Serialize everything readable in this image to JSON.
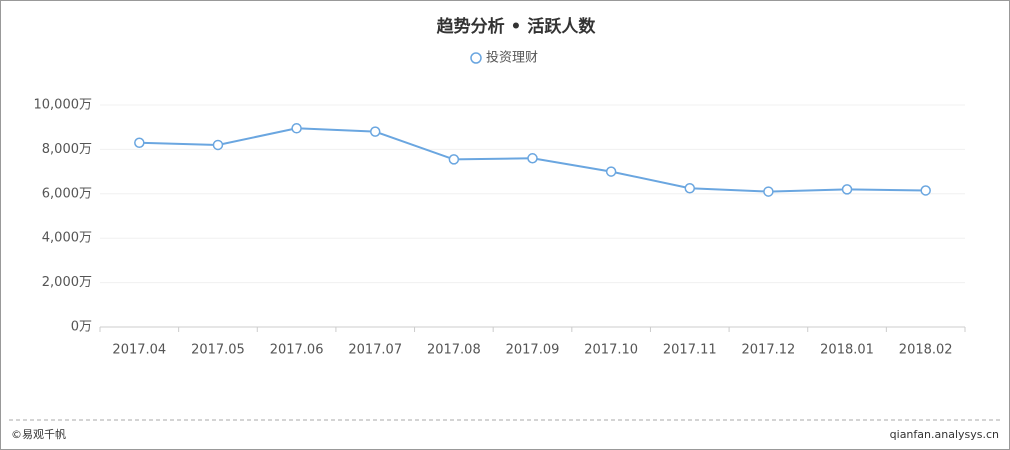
{
  "chart_data": {
    "type": "line",
    "title": "趋势分析 • 活跃人数",
    "categories": [
      "2017.04",
      "2017.05",
      "2017.06",
      "2017.07",
      "2017.08",
      "2017.09",
      "2017.10",
      "2017.11",
      "2017.12",
      "2018.01",
      "2018.02"
    ],
    "series": [
      {
        "name": "投资理财",
        "color": "#6aa6e0",
        "values": [
          8300,
          8200,
          8950,
          8800,
          7550,
          7600,
          7000,
          6250,
          6100,
          6200,
          6150
        ]
      }
    ],
    "ylim": [
      0,
      10000
    ],
    "yticks": [
      {
        "value": 0,
        "label": "0万"
      },
      {
        "value": 2000,
        "label": "2,000万"
      },
      {
        "value": 4000,
        "label": "4,000万"
      },
      {
        "value": 6000,
        "label": "6,000万"
      },
      {
        "value": 8000,
        "label": "8,000万"
      },
      {
        "value": 10000,
        "label": "10,000万"
      }
    ],
    "grid": true,
    "legend": "top"
  },
  "footer": {
    "source": "©易观千帆",
    "url": "qianfan.analysys.cn"
  }
}
